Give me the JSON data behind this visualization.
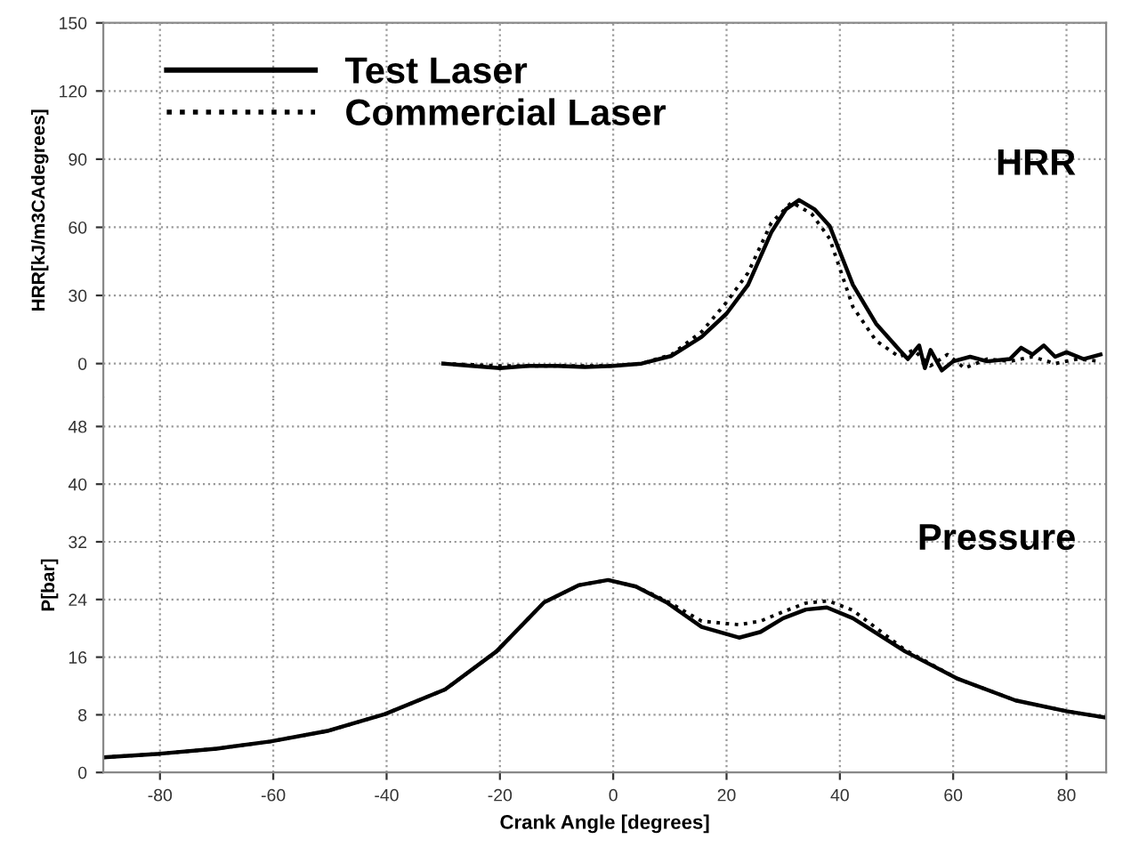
{
  "chart_data": [
    {
      "type": "line",
      "ylabel": "HRR[kJ/m3CAdegrees]",
      "xlim": [
        -90,
        87
      ],
      "ylim": [
        -15,
        150
      ],
      "xticks": [
        -80,
        -60,
        -40,
        -20,
        0,
        20,
        40,
        60,
        80
      ],
      "yticks": [
        0,
        30,
        60,
        90,
        120,
        150
      ],
      "tick_labels": "y",
      "grid": true,
      "legend": "top left",
      "annotations": [
        "HRR"
      ],
      "series": [
        {
          "name": "Test Laser",
          "color": "#000000",
          "line_style": "solid",
          "x": [
            -30,
            -25,
            -20,
            -15,
            -10,
            -5,
            0,
            5,
            10.3,
            15.6,
            20,
            23.8,
            27.9,
            30.5,
            32.8,
            35.5,
            38.2,
            42.3,
            46.4,
            50.5,
            52,
            54,
            55,
            56,
            58,
            60,
            63,
            66,
            70,
            72,
            74,
            76,
            78,
            80,
            83,
            86
          ],
          "values": [
            0,
            -1,
            -2,
            -1,
            -1,
            -1.5,
            -1,
            0,
            3.4,
            11.8,
            22,
            34.7,
            57.8,
            68,
            72,
            68,
            60.6,
            34.7,
            17.5,
            6,
            2,
            8,
            -2,
            6,
            -3,
            1,
            3,
            1,
            2,
            7,
            4,
            8,
            3,
            5,
            2,
            4
          ]
        },
        {
          "name": "Commercial Laser",
          "color": "#000000",
          "line_style": "dotted",
          "x": [
            -30,
            -20,
            -10,
            0,
            5,
            10.3,
            15.6,
            20,
            23.8,
            27.9,
            31.5,
            35,
            38.2,
            42.3,
            46.4,
            50.5,
            53,
            56,
            59,
            62,
            66,
            70,
            74,
            78,
            82,
            86
          ],
          "values": [
            0,
            -1,
            -1,
            -1,
            0,
            4,
            14,
            27,
            40,
            62,
            71,
            66,
            55,
            25,
            10,
            3,
            6,
            -1,
            4,
            -2,
            2,
            1,
            3,
            0,
            2,
            1
          ]
        }
      ]
    },
    {
      "type": "line",
      "xlabel": "Crank Angle [degrees]",
      "ylabel": "P[bar]",
      "xlim": [
        -90,
        87
      ],
      "ylim": [
        0,
        52
      ],
      "xticks": [
        -80,
        -60,
        -40,
        -20,
        0,
        20,
        40,
        60,
        80
      ],
      "yticks": [
        0,
        8,
        16,
        24,
        32,
        40,
        48
      ],
      "grid": true,
      "annotations": [
        "Pressure"
      ],
      "series": [
        {
          "color": "#000000",
          "line_style": "solid",
          "x": [
            -90,
            -80,
            -70,
            -60.5,
            -50.2,
            -40.3,
            -29.7,
            -20.6,
            -12.2,
            -6,
            -0.9,
            4,
            9.4,
            15.6,
            22.2,
            26,
            30,
            34,
            37.7,
            42.3,
            51.5,
            60.8,
            71,
            80,
            87
          ],
          "values": [
            2.1,
            2.6,
            3.3,
            4.3,
            5.8,
            8.1,
            11.5,
            16.8,
            23.6,
            26,
            26.7,
            25.8,
            23.6,
            20.2,
            18.7,
            19.5,
            21.4,
            22.6,
            22.9,
            21.4,
            16.8,
            13,
            10,
            8.5,
            7.6
          ]
        },
        {
          "color": "#000000",
          "line_style": "dotted",
          "x": [
            -90,
            -80,
            -70,
            -60.5,
            -50.2,
            -40.3,
            -29.7,
            -20.6,
            -12.2,
            -6,
            -0.9,
            4,
            9.4,
            15.6,
            22.2,
            26,
            30,
            34,
            38,
            42.3,
            51.5,
            60.8,
            71,
            80,
            87
          ],
          "values": [
            2.1,
            2.6,
            3.3,
            4.3,
            5.8,
            8.1,
            11.5,
            16.8,
            23.6,
            26,
            26.7,
            25.8,
            23.8,
            21,
            20.5,
            21,
            22.3,
            23.5,
            23.8,
            22.5,
            17,
            13,
            10,
            8.5,
            7.6
          ]
        }
      ]
    }
  ]
}
